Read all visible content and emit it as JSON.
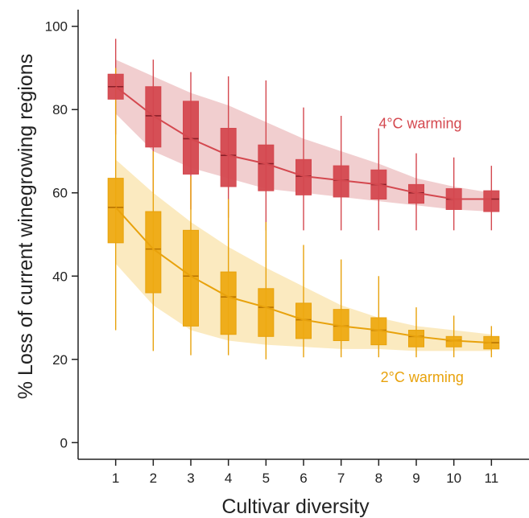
{
  "chart_data": {
    "type": "boxplot",
    "title": "",
    "xlabel": "Cultivar diversity",
    "ylabel": "% Loss of current winegrowing regions",
    "x": [
      1,
      2,
      3,
      4,
      5,
      6,
      7,
      8,
      9,
      10,
      11
    ],
    "x_tick_labels": [
      "1",
      "2",
      "3",
      "4",
      "5",
      "6",
      "7",
      "8",
      "9",
      "10",
      "11"
    ],
    "xlim": [
      0,
      12
    ],
    "ylim": [
      -4,
      104
    ],
    "y_ticks": [
      0,
      20,
      40,
      60,
      80,
      100
    ],
    "y_tick_labels": [
      "0",
      "20",
      "40",
      "60",
      "80",
      "100"
    ],
    "grid": false,
    "legend": "none",
    "series": [
      {
        "name": "4°C warming",
        "label": "4°C warming",
        "color": "#d4484f",
        "fill": "#d4484f",
        "band_color": "#efc5c7",
        "whisker_low": [
          74,
          60,
          56,
          54,
          51,
          51,
          51,
          51,
          51,
          51,
          51
        ],
        "q1": [
          82.5,
          71,
          64.5,
          61.5,
          60.5,
          59.5,
          59,
          58.5,
          57.5,
          56,
          55.5
        ],
        "median": [
          85.5,
          78.5,
          73,
          69,
          67,
          64,
          63,
          62,
          60,
          58.5,
          58.5
        ],
        "q3": [
          88.5,
          85.5,
          82,
          75.5,
          71.5,
          68,
          66.5,
          65.5,
          62,
          61,
          60.5
        ],
        "whisker_high": [
          97,
          92,
          89,
          88,
          87,
          80.5,
          78.5,
          75.5,
          69.5,
          68.5,
          66.5
        ],
        "band_low": [
          79,
          70,
          66,
          63.5,
          61,
          60,
          59,
          58,
          57,
          56,
          55.5
        ],
        "band_high": [
          92,
          88,
          84,
          81,
          77,
          73,
          70,
          67,
          63.5,
          61.5,
          60
        ]
      },
      {
        "name": "2°C warming",
        "label": "2°C warming",
        "color": "#e8a20c",
        "fill": "#eeaa12",
        "band_color": "#fae6b5",
        "whisker_low": [
          27,
          22,
          21,
          21,
          20,
          20.5,
          20.5,
          20.5,
          20.5,
          20.5,
          20.5
        ],
        "q1": [
          48,
          36,
          28,
          26,
          25.5,
          25,
          24.5,
          23.5,
          23,
          23,
          22.5
        ],
        "median": [
          56.5,
          46.5,
          40,
          35,
          32.5,
          29.5,
          28,
          27,
          25.5,
          24.5,
          24
        ],
        "q3": [
          63.5,
          55.5,
          51,
          41,
          37,
          33.5,
          32,
          30,
          27,
          25.5,
          25.5
        ],
        "whisker_high": [
          90,
          70,
          64,
          58.5,
          53,
          47.5,
          44,
          40,
          32.5,
          30.5,
          28
        ],
        "band_low": [
          43,
          33,
          27,
          24.5,
          23.5,
          23,
          22.5,
          22.5,
          22,
          22,
          22
        ],
        "band_high": [
          68,
          60,
          53,
          47,
          42,
          37.5,
          33,
          30,
          28,
          27,
          26
        ]
      }
    ],
    "annotations": [
      {
        "text": "4°C warming",
        "series": 0,
        "x": 8.0,
        "y": 75.5
      },
      {
        "text": "2°C warming",
        "series": 1,
        "x": 8.05,
        "y": 14.5
      }
    ],
    "colors": {
      "axis": "#222222",
      "text": "#222222",
      "median_line_4c": "#8a1f28",
      "median_line_2c": "#b97400"
    }
  }
}
